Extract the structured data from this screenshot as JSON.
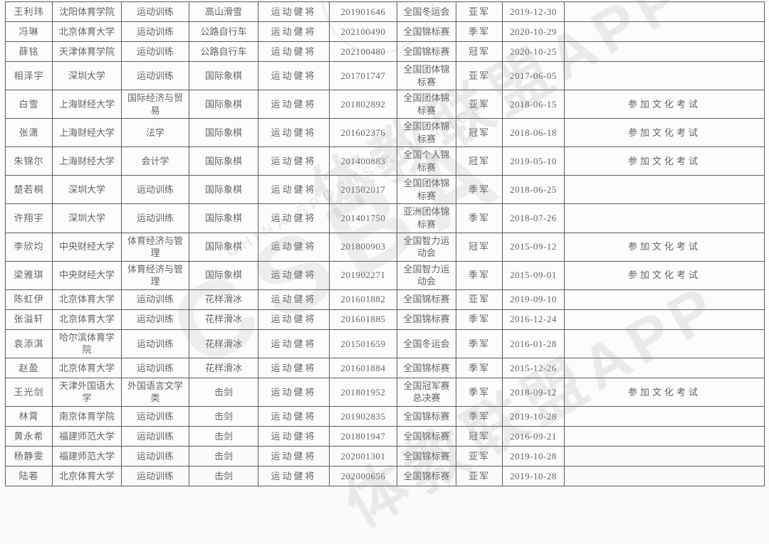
{
  "watermark": {
    "app_label": "体教联盟APP",
    "acronym": "CSBA",
    "caption": "CHINA SPORTS ALLIANCE"
  },
  "table": {
    "field_order": [
      "name",
      "university",
      "major",
      "sport",
      "title",
      "cert_no",
      "competition",
      "result",
      "date",
      "note"
    ],
    "rows": [
      {
        "name": "王利玮",
        "university": "沈阳体育学院",
        "major": "运动训练",
        "sport": "高山滑雪",
        "title": "运动健将",
        "cert_no": "201901646",
        "competition": "全国冬运会",
        "result": "亚军",
        "date": "2019-12-30",
        "note": ""
      },
      {
        "name": "冯琳",
        "university": "北京体育大学",
        "major": "运动训练",
        "sport": "公路自行车",
        "title": "运动健将",
        "cert_no": "202100490",
        "competition": "全国锦标赛",
        "result": "季军",
        "date": "2020-10-29",
        "note": ""
      },
      {
        "name": "薛铭",
        "university": "天津体育学院",
        "major": "运动训练",
        "sport": "公路自行车",
        "title": "运动健将",
        "cert_no": "202100480",
        "competition": "全国锦标赛",
        "result": "冠军",
        "date": "2020-10-25",
        "note": ""
      },
      {
        "name": "相泽宇",
        "university": "深圳大学",
        "major": "运动训练",
        "sport": "国际象棋",
        "title": "运动健将",
        "cert_no": "201701747",
        "competition": "全国团体锦标赛",
        "result": "亚军",
        "date": "2017-06-05",
        "note": ""
      },
      {
        "name": "白雪",
        "university": "上海财经大学",
        "major": "国际经济与贸易",
        "sport": "国际象棋",
        "title": "运动健将",
        "cert_no": "201802892",
        "competition": "全国团体锦标赛",
        "result": "亚军",
        "date": "2018-06-15",
        "note": "参加文化考试"
      },
      {
        "name": "张潇",
        "university": "上海财经大学",
        "major": "法学",
        "sport": "国际象棋",
        "title": "运动健将",
        "cert_no": "201602376",
        "competition": "全国团体锦标赛",
        "result": "冠军",
        "date": "2018-06-18",
        "note": "参加文化考试"
      },
      {
        "name": "朱锦尔",
        "university": "上海财经大学",
        "major": "会计学",
        "sport": "国际象棋",
        "title": "运动健将",
        "cert_no": "201400883",
        "competition": "全国个人锦标赛",
        "result": "冠军",
        "date": "2019-05-10",
        "note": "参加文化考试"
      },
      {
        "name": "楚若桐",
        "university": "深圳大学",
        "major": "运动训练",
        "sport": "国际象棋",
        "title": "运动健将",
        "cert_no": "201502017",
        "competition": "全国团体锦标赛",
        "result": "季军",
        "date": "2018-06-25",
        "note": ""
      },
      {
        "name": "许翔宇",
        "university": "深圳大学",
        "major": "运动训练",
        "sport": "国际象棋",
        "title": "运动健将",
        "cert_no": "201401750",
        "competition": "亚洲团体锦标赛",
        "result": "季军",
        "date": "2018-07-26",
        "note": ""
      },
      {
        "name": "李欣均",
        "university": "中央财经大学",
        "major": "体育经济与管理",
        "sport": "国际象棋",
        "title": "运动健将",
        "cert_no": "201800903",
        "competition": "全国智力运动会",
        "result": "冠军",
        "date": "2015-09-12",
        "note": "参加文化考试"
      },
      {
        "name": "梁雅琪",
        "university": "中央财经大学",
        "major": "体育经济与管理",
        "sport": "国际象棋",
        "title": "运动健将",
        "cert_no": "201902271",
        "competition": "全国智力运动会",
        "result": "季军",
        "date": "2015-09-01",
        "note": "参加文化考试"
      },
      {
        "name": "陈虹伊",
        "university": "北京体育大学",
        "major": "运动训练",
        "sport": "花样滑冰",
        "title": "运动健将",
        "cert_no": "201601882",
        "competition": "全国锦标赛",
        "result": "亚军",
        "date": "2019-09-10",
        "note": ""
      },
      {
        "name": "张溢轩",
        "university": "北京体育大学",
        "major": "运动训练",
        "sport": "花样滑冰",
        "title": "运动健将",
        "cert_no": "201601885",
        "competition": "全国锦标赛",
        "result": "季军",
        "date": "2016-12-24",
        "note": ""
      },
      {
        "name": "袁添淇",
        "university": "哈尔滨体育学院",
        "major": "运动训练",
        "sport": "花样滑冰",
        "title": "运动健将",
        "cert_no": "201501659",
        "competition": "全国冬运会",
        "result": "季军",
        "date": "2016-01-28",
        "note": ""
      },
      {
        "name": "赵盈",
        "university": "北京体育大学",
        "major": "运动训练",
        "sport": "花样滑冰",
        "title": "运动健将",
        "cert_no": "201601884",
        "competition": "全国锦标赛",
        "result": "季军",
        "date": "2015-12-26",
        "note": ""
      },
      {
        "name": "王光剑",
        "university": "天津外国语大学",
        "major": "外国语言文学类",
        "sport": "击剑",
        "title": "运动健将",
        "cert_no": "201801952",
        "competition": "全国冠军赛总决赛",
        "result": "季军",
        "date": "2018-09-12",
        "note": "参加文化考试"
      },
      {
        "name": "林霄",
        "university": "南京体育学院",
        "major": "运动训练",
        "sport": "击剑",
        "title": "运动健将",
        "cert_no": "201902835",
        "competition": "全国锦标赛",
        "result": "季军",
        "date": "2019-10-28",
        "note": ""
      },
      {
        "name": "黄永希",
        "university": "福建师范大学",
        "major": "运动训练",
        "sport": "击剑",
        "title": "运动健将",
        "cert_no": "201801947",
        "competition": "全国锦标赛",
        "result": "冠军",
        "date": "2016-09-21",
        "note": ""
      },
      {
        "name": "杨静雯",
        "university": "福建师范大学",
        "major": "运动训练",
        "sport": "击剑",
        "title": "运动健将",
        "cert_no": "202001301",
        "competition": "全国锦标赛",
        "result": "亚军",
        "date": "2019-10-28",
        "note": ""
      },
      {
        "name": "陆菤",
        "university": "北京体育大学",
        "major": "运动训练",
        "sport": "击剑",
        "title": "运动健将",
        "cert_no": "202000656",
        "competition": "全国锦标赛",
        "result": "亚军",
        "date": "2019-10-28",
        "note": ""
      }
    ]
  }
}
